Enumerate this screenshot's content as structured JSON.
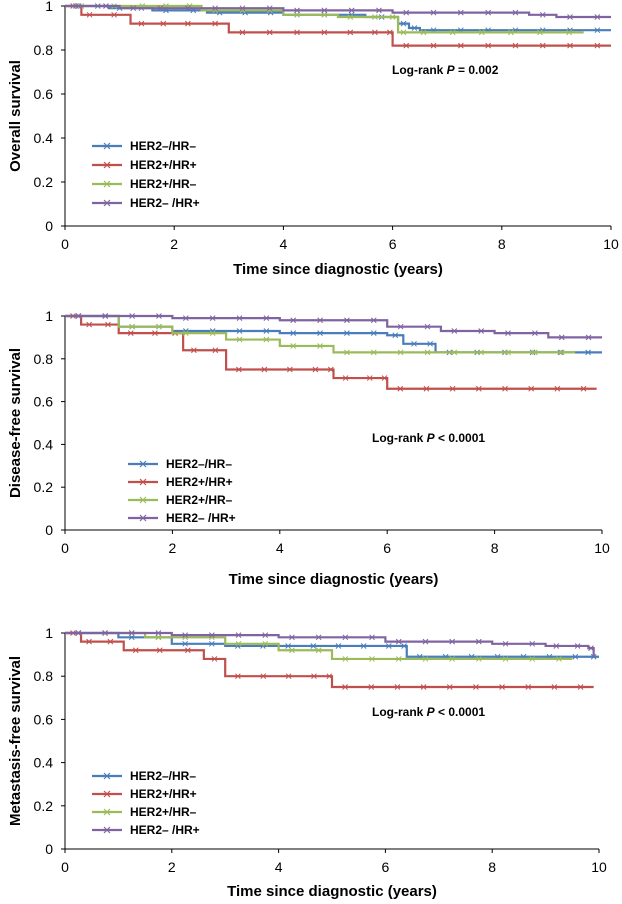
{
  "colors": {
    "HER2-/HR-": "#4a7ebb",
    "HER2+/HR+": "#c0504d",
    "HER2+/HR-": "#9bbb59",
    "HER2-/HR+": "#8064a2"
  },
  "chart_data": [
    {
      "type": "line",
      "title": "",
      "xlabel": "Time since diagnostic (years)",
      "ylabel": "Overall survival",
      "xlim": [
        0,
        10
      ],
      "ylim": [
        0,
        1
      ],
      "xticks": [
        "0",
        "2",
        "4",
        "6",
        "8",
        "10"
      ],
      "yticks": [
        "0",
        "0.2",
        "0.4",
        "0.6",
        "0.8",
        "1"
      ],
      "grid": false,
      "legend_position": "bottom-left",
      "annotation": {
        "prefix": "Log-rank ",
        "italic": "P",
        "suffix": " = 0.002"
      },
      "series": [
        {
          "name": "HER2–/HR–",
          "color_key": "HER2-/HR-",
          "x": [
            0,
            0.8,
            1.6,
            2.6,
            4.0,
            5.5,
            6.1,
            6.3,
            6.5,
            10
          ],
          "y": [
            1,
            0.99,
            0.98,
            0.97,
            0.96,
            0.95,
            0.92,
            0.9,
            0.89,
            0.89
          ]
        },
        {
          "name": "HER2+/HR+",
          "color_key": "HER2+/HR+",
          "x": [
            0,
            0.3,
            0.6,
            1.2,
            2.0,
            3.0,
            5.0,
            5.9,
            6.0,
            10
          ],
          "y": [
            1,
            0.96,
            0.96,
            0.92,
            0.92,
            0.88,
            0.88,
            0.88,
            0.82,
            0.82
          ]
        },
        {
          "name": "HER2+/HR–",
          "color_key": "HER2+/HR-",
          "x": [
            0,
            1.2,
            2.5,
            4.0,
            5.0,
            5.9,
            6.1,
            6.3,
            9.5
          ],
          "y": [
            1,
            1,
            0.98,
            0.96,
            0.95,
            0.95,
            0.88,
            0.88,
            0.88
          ]
        },
        {
          "name": "HER2– /HR+",
          "color_key": "HER2-/HR+",
          "x": [
            0,
            1.0,
            2.0,
            4.0,
            6.0,
            7.5,
            8.5,
            9.0,
            10
          ],
          "y": [
            1,
            0.99,
            0.99,
            0.98,
            0.97,
            0.97,
            0.96,
            0.95,
            0.95
          ]
        }
      ]
    },
    {
      "type": "line",
      "title": "",
      "xlabel": "Time since diagnostic (years)",
      "ylabel": "Disease-free survival",
      "xlim": [
        0,
        10
      ],
      "ylim": [
        0,
        1
      ],
      "xticks": [
        "0",
        "2",
        "4",
        "6",
        "8",
        "10"
      ],
      "yticks": [
        "0",
        "0.2",
        "0.4",
        "0.6",
        "0.8",
        "1"
      ],
      "grid": false,
      "legend_position": "bottom-left",
      "annotation": {
        "prefix": "Log-rank ",
        "italic": "P",
        "suffix": " < 0.0001"
      },
      "series": [
        {
          "name": "HER2–/HR–",
          "color_key": "HER2-/HR-",
          "x": [
            0,
            1.0,
            2.0,
            4.0,
            6.0,
            6.3,
            6.7,
            6.9,
            10
          ],
          "y": [
            1,
            0.95,
            0.93,
            0.92,
            0.91,
            0.87,
            0.87,
            0.83,
            0.83
          ]
        },
        {
          "name": "HER2+/HR+",
          "color_key": "HER2+/HR+",
          "x": [
            0,
            0.3,
            0.6,
            1.0,
            1.9,
            2.2,
            3.0,
            4.9,
            5.0,
            5.9,
            6.0,
            9.9
          ],
          "y": [
            1,
            0.96,
            0.96,
            0.92,
            0.92,
            0.84,
            0.75,
            0.75,
            0.71,
            0.71,
            0.66,
            0.66
          ]
        },
        {
          "name": "HER2+/HR–",
          "color_key": "HER2+/HR-",
          "x": [
            0,
            1.0,
            2.0,
            3.0,
            4.0,
            5.0,
            6.0,
            9.5
          ],
          "y": [
            1,
            0.95,
            0.92,
            0.89,
            0.86,
            0.83,
            0.83,
            0.83
          ]
        },
        {
          "name": "HER2– /HR+",
          "color_key": "HER2-/HR+",
          "x": [
            0,
            2.0,
            4.0,
            6.0,
            7.0,
            8.0,
            9.0,
            10
          ],
          "y": [
            1,
            0.99,
            0.98,
            0.95,
            0.93,
            0.92,
            0.9,
            0.9
          ]
        }
      ]
    },
    {
      "type": "line",
      "title": "",
      "xlabel": "Time since diagnostic (years)",
      "ylabel": "Metastasis-free survival",
      "xlim": [
        0,
        10
      ],
      "ylim": [
        0,
        1
      ],
      "xticks": [
        "0",
        "2",
        "4",
        "6",
        "8",
        "10"
      ],
      "yticks": [
        "0",
        "0.2",
        "0.4",
        "0.6",
        "0.8",
        "1"
      ],
      "grid": false,
      "legend_position": "bottom-left",
      "annotation": {
        "prefix": "Log-rank ",
        "italic": "P",
        "suffix": " < 0.0001"
      },
      "series": [
        {
          "name": "HER2–/HR–",
          "color_key": "HER2-/HR-",
          "x": [
            0,
            1.0,
            2.0,
            3.0,
            6.3,
            6.4,
            9.8,
            10
          ],
          "y": [
            1,
            0.98,
            0.95,
            0.94,
            0.94,
            0.89,
            0.89,
            0.89
          ]
        },
        {
          "name": "HER2+/HR+",
          "color_key": "HER2+/HR+",
          "x": [
            0,
            0.3,
            0.6,
            1.1,
            2.0,
            2.6,
            3.0,
            4.9,
            5.0,
            9.9
          ],
          "y": [
            1,
            0.96,
            0.96,
            0.92,
            0.92,
            0.88,
            0.8,
            0.8,
            0.75,
            0.75
          ]
        },
        {
          "name": "HER2+/HR–",
          "color_key": "HER2+/HR-",
          "x": [
            0,
            1.5,
            3.0,
            4.0,
            5.0,
            6.0,
            9.5
          ],
          "y": [
            1,
            0.98,
            0.95,
            0.92,
            0.88,
            0.88,
            0.88
          ]
        },
        {
          "name": "HER2– /HR+",
          "color_key": "HER2-/HR+",
          "x": [
            0,
            2.0,
            4.0,
            6.0,
            8.0,
            9.0,
            9.8,
            9.9
          ],
          "y": [
            1,
            0.99,
            0.98,
            0.96,
            0.95,
            0.94,
            0.93,
            0.89
          ]
        }
      ]
    }
  ]
}
